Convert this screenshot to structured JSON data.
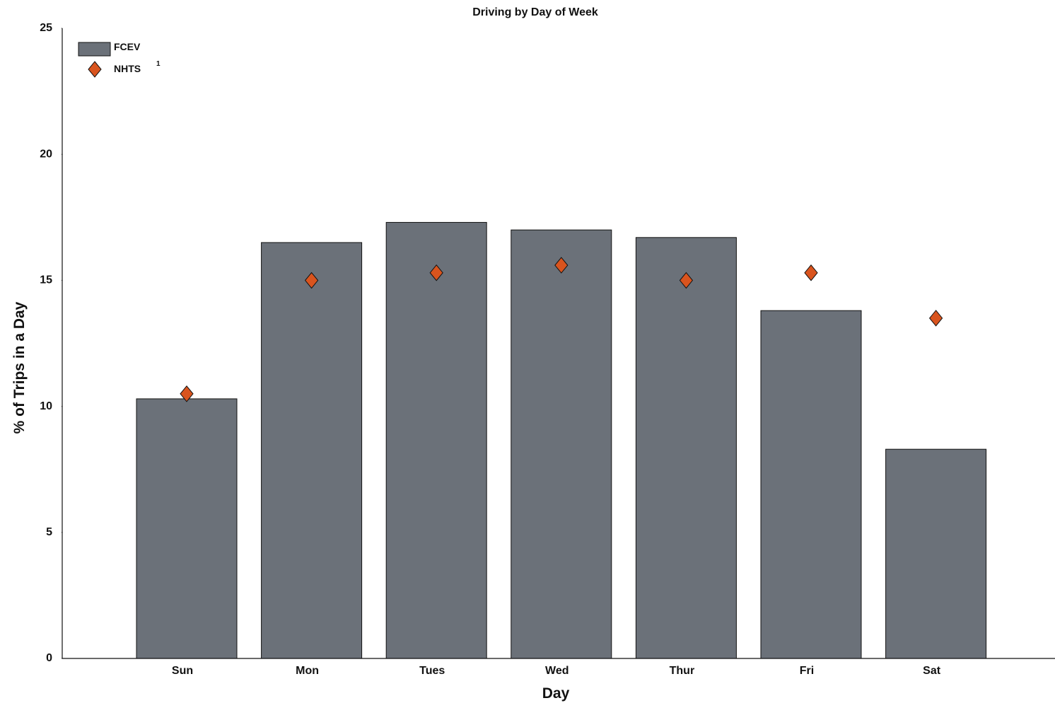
{
  "chart_data": {
    "type": "bar",
    "title": "Driving by Day of Week",
    "xlabel": "Day",
    "ylabel": "% of Trips in a Day",
    "categories": [
      "Sun",
      "Mon",
      "Tues",
      "Wed",
      "Thur",
      "Fri",
      "Sat"
    ],
    "ylim": [
      0,
      25
    ],
    "yticks": [
      0,
      5,
      10,
      15,
      20,
      25
    ],
    "grid": false,
    "legend_position": "top-left",
    "series": [
      {
        "name": "FCEV",
        "mark": "bar",
        "color": "#6b7179",
        "values": [
          10.3,
          16.5,
          17.3,
          17.0,
          16.7,
          13.8,
          8.3
        ]
      },
      {
        "name": "NHTS",
        "superscript": "1",
        "mark": "diamond",
        "color": "#d9541e",
        "values": [
          10.5,
          15.0,
          15.3,
          15.6,
          15.0,
          15.3,
          13.5
        ]
      }
    ]
  }
}
